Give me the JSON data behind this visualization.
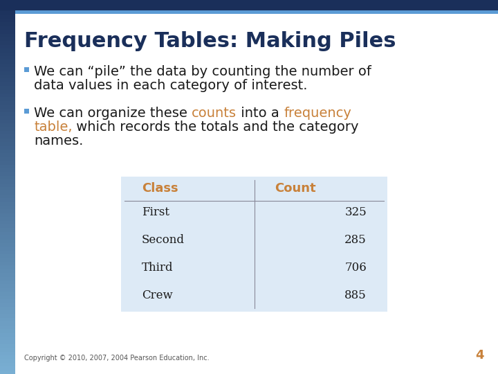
{
  "title": "Frequency Tables: Making Piles",
  "title_color": "#1a2f5a",
  "title_fontsize": 22,
  "bullet_color": "#5b9bd5",
  "bullet1": "We can “pile” the data by counting the number of data values in each category of interest.",
  "bullet2_black1": "We can organize these ",
  "bullet2_orange1": "counts",
  "bullet2_black2": " into a ",
  "bullet2_orange2": "frequency",
  "bullet2_black3": "\ntable,",
  "bullet2_orange3": "",
  "line2a_black1": "We can organize these ",
  "line2a_orange1": "counts",
  "line2a_black2": " into a ",
  "line2a_orange2": "frequency",
  "line2b_orange1": "table,",
  "line2b_black1": " which records the totals and the category",
  "line2c_black1": "names.",
  "table_headers": [
    "Class",
    "Count"
  ],
  "table_header_color": "#c8813a",
  "table_header_fontsize": 13,
  "table_rows": [
    [
      "First",
      "325"
    ],
    [
      "Second",
      "285"
    ],
    [
      "Third",
      "706"
    ],
    [
      "Crew",
      "885"
    ]
  ],
  "table_bg_color": "#ddeaf6",
  "table_line_color": "#888899",
  "table_text_color": "#1a1a1a",
  "table_fontsize": 12,
  "slide_bg": "#ffffff",
  "left_bar_dark": "#1a2f5a",
  "left_bar_light": "#7ab0d4",
  "top_bar1_color": "#1a2f5a",
  "top_bar2_color": "#5b9bd5",
  "main_text_color": "#1a1a1a",
  "orange_color": "#c8813a",
  "main_fontsize": 14,
  "copyright": "Copyright © 2010, 2007, 2004 Pearson Education, Inc.",
  "page_num": "4",
  "copyright_fontsize": 7,
  "page_num_fontsize": 13,
  "page_num_color": "#c8813a"
}
